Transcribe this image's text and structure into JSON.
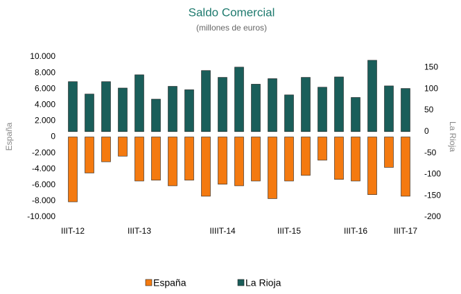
{
  "chart_data": {
    "type": "bar",
    "title": "Saldo Comercial",
    "subtitle": "(millones de euros)",
    "y_label": "España",
    "y2_label": "La Rioja",
    "categories": [
      "IIIT-12",
      null,
      null,
      null,
      "IIIT-13",
      null,
      null,
      null,
      null,
      "IIIIT-14",
      null,
      null,
      null,
      "IIIT-15",
      null,
      null,
      null,
      "IIIT-16",
      null,
      null,
      "IIIT-17"
    ],
    "series": [
      {
        "name": "España",
        "color": "#f47a10",
        "values": [
          -8100,
          -4500,
          -3100,
          -2400,
          -5500,
          -5400,
          -6100,
          -5400,
          -7400,
          -5900,
          -6100,
          -5500,
          -7700,
          -5500,
          -4800,
          -2900,
          -5300,
          -5500,
          -7200,
          -3800,
          -7400
        ]
      },
      {
        "name": "La Rioja",
        "color": "#1a5e5a",
        "axis": "y2",
        "values": [
          117,
          88,
          117,
          102,
          133,
          76,
          106,
          98,
          143,
          127,
          151,
          111,
          124,
          86,
          127,
          104,
          128,
          80,
          167,
          107,
          101
        ]
      }
    ],
    "ylim": [
      -10000,
      10000
    ],
    "yticks": [
      {
        "value": -10000,
        "label": "-10.000"
      },
      {
        "value": -8000,
        "label": "-8.000"
      },
      {
        "value": -6000,
        "label": "-6.000"
      },
      {
        "value": -4000,
        "label": "-4.000"
      },
      {
        "value": -2000,
        "label": "-2.000"
      },
      0,
      {
        "value": 2000,
        "label": "2.000"
      },
      {
        "value": 4000,
        "label": "4.000"
      },
      {
        "value": 6000,
        "label": "6.000"
      },
      {
        "value": 8000,
        "label": "8.000"
      },
      {
        "value": 10000,
        "label": "10.000"
      }
    ],
    "y2lim": [
      -200,
      175
    ],
    "y2ticks": [
      -200,
      -150,
      -100,
      -50,
      0,
      50,
      100,
      150
    ],
    "legend": "bottom"
  }
}
